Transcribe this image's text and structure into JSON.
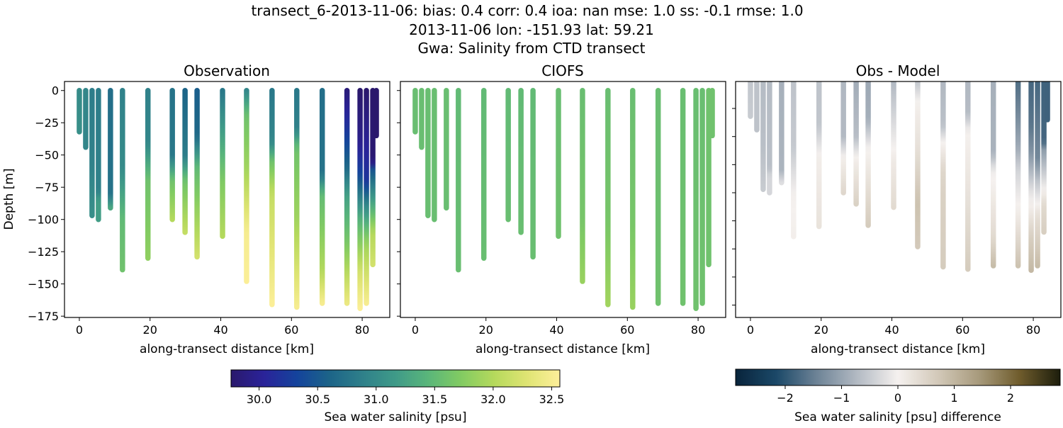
{
  "figure": {
    "title_lines": [
      "transect_6-2013-11-06: bias: 0.4  corr: 0.4  ioa: nan  mse: 1.0  ss: -0.1  rmse: 1.0",
      "2013-11-06 lon: -151.93 lat: 59.21",
      "Gwa: Salinity from CTD transect"
    ]
  },
  "chart_data": [
    {
      "type": "scatter",
      "title": "Observation",
      "xlabel": "along-transect distance [km]",
      "ylabel": "Depth [m]",
      "xlim": [
        -4.2,
        87.8
      ],
      "ylim": [
        -176,
        7
      ],
      "xticks": [
        0,
        20,
        40,
        60,
        80
      ],
      "xtick_labels": [
        "0",
        "20",
        "40",
        "60",
        "80"
      ],
      "yticks": [
        0,
        -25,
        -50,
        -75,
        -100,
        -125,
        -150,
        -175
      ],
      "ytick_labels": [
        "0",
        "−25",
        "−50",
        "−75",
        "−100",
        "−125",
        "−150",
        "−175"
      ],
      "colormap": "haline",
      "stations": [
        {
          "km": 0.0,
          "profile": [
            [
              0,
              31.0
            ],
            [
              -32,
              31.05
            ]
          ]
        },
        {
          "km": 1.8,
          "profile": [
            [
              0,
              30.95
            ],
            [
              -44,
              30.95
            ]
          ]
        },
        {
          "km": 3.6,
          "profile": [
            [
              0,
              30.85
            ],
            [
              -60,
              30.9
            ],
            [
              -97,
              31.05
            ]
          ]
        },
        {
          "km": 5.4,
          "profile": [
            [
              0,
              30.85
            ],
            [
              -78,
              30.9
            ],
            [
              -85,
              31.2
            ],
            [
              -100,
              31.2
            ]
          ]
        },
        {
          "km": 8.8,
          "profile": [
            [
              0,
              30.7
            ],
            [
              -80,
              30.75
            ],
            [
              -91,
              31.3
            ]
          ]
        },
        {
          "km": 12.2,
          "profile": [
            [
              0,
              30.9
            ],
            [
              -60,
              31.0
            ],
            [
              -100,
              31.5
            ],
            [
              -139,
              31.6
            ]
          ]
        },
        {
          "km": 19.4,
          "profile": [
            [
              0,
              30.9
            ],
            [
              -40,
              30.95
            ],
            [
              -70,
              31.6
            ],
            [
              -130,
              31.8
            ]
          ]
        },
        {
          "km": 26.3,
          "profile": [
            [
              0,
              30.75
            ],
            [
              -50,
              30.8
            ],
            [
              -70,
              31.6
            ],
            [
              -100,
              32.0
            ]
          ]
        },
        {
          "km": 29.9,
          "profile": [
            [
              0,
              30.6
            ],
            [
              -50,
              30.85
            ],
            [
              -70,
              31.6
            ],
            [
              -110,
              32.1
            ]
          ]
        },
        {
          "km": 33.3,
          "profile": [
            [
              0,
              30.55
            ],
            [
              -35,
              30.65
            ],
            [
              -60,
              31.5
            ],
            [
              -129,
              32.2
            ]
          ]
        },
        {
          "km": 40.5,
          "profile": [
            [
              0,
              30.8
            ],
            [
              -40,
              31.3
            ],
            [
              -70,
              31.7
            ],
            [
              -113,
              32.0
            ]
          ]
        },
        {
          "km": 47.3,
          "profile": [
            [
              0,
              30.95
            ],
            [
              -20,
              31.6
            ],
            [
              -60,
              31.9
            ],
            [
              -110,
              32.5
            ],
            [
              -148,
              32.55
            ]
          ]
        },
        {
          "km": 54.5,
          "profile": [
            [
              0,
              30.8
            ],
            [
              -40,
              30.95
            ],
            [
              -55,
              31.6
            ],
            [
              -80,
              32.1
            ],
            [
              -166,
              32.55
            ]
          ]
        },
        {
          "km": 61.5,
          "profile": [
            [
              0,
              30.8
            ],
            [
              -30,
              30.9
            ],
            [
              -45,
              31.6
            ],
            [
              -100,
              31.9
            ],
            [
              -168,
              32.5
            ]
          ]
        },
        {
          "km": 68.7,
          "profile": [
            [
              0,
              30.7
            ],
            [
              -65,
              30.75
            ],
            [
              -80,
              31.5
            ],
            [
              -140,
              32.0
            ],
            [
              -165,
              32.5
            ]
          ]
        },
        {
          "km": 75.7,
          "profile": [
            [
              0,
              29.85
            ],
            [
              -30,
              30.2
            ],
            [
              -60,
              30.65
            ],
            [
              -80,
              31.2
            ],
            [
              -120,
              31.7
            ],
            [
              -165,
              32.4
            ]
          ]
        },
        {
          "km": 79.4,
          "profile": [
            [
              0,
              29.76
            ],
            [
              -40,
              29.95
            ],
            [
              -65,
              30.35
            ],
            [
              -100,
              31.4
            ],
            [
              -140,
              32.2
            ],
            [
              -169,
              32.55
            ]
          ]
        },
        {
          "km": 81.2,
          "profile": [
            [
              0,
              29.76
            ],
            [
              -70,
              30.2
            ],
            [
              -90,
              31.0
            ],
            [
              -120,
              31.9
            ],
            [
              -165,
              32.5
            ]
          ]
        },
        {
          "km": 83.0,
          "profile": [
            [
              0,
              29.76
            ],
            [
              -55,
              29.8
            ],
            [
              -62,
              30.5
            ],
            [
              -85,
              31.2
            ],
            [
              -110,
              32.0
            ],
            [
              -135,
              32.2
            ]
          ]
        },
        {
          "km": 84.0,
          "profile": [
            [
              0,
              29.76
            ],
            [
              -35,
              29.76
            ]
          ]
        }
      ]
    },
    {
      "type": "scatter",
      "title": "CIOFS",
      "xlabel": "along-transect distance [km]",
      "xlim": [
        -4.2,
        87.8
      ],
      "ylim": [
        -176,
        7
      ],
      "xticks": [
        0,
        20,
        40,
        60,
        80
      ],
      "xtick_labels": [
        "0",
        "20",
        "40",
        "60",
        "80"
      ],
      "yticks": [
        0,
        -25,
        -50,
        -75,
        -100,
        -125,
        -150,
        -175
      ],
      "colormap": "haline",
      "stations": [
        {
          "km": 0.0,
          "profile": [
            [
              0,
              31.55
            ],
            [
              -32,
              31.55
            ]
          ]
        },
        {
          "km": 1.8,
          "profile": [
            [
              0,
              31.55
            ],
            [
              -44,
              31.55
            ]
          ]
        },
        {
          "km": 3.6,
          "profile": [
            [
              0,
              31.55
            ],
            [
              -97,
              31.55
            ]
          ]
        },
        {
          "km": 5.4,
          "profile": [
            [
              0,
              31.55
            ],
            [
              -100,
              31.55
            ]
          ]
        },
        {
          "km": 8.8,
          "profile": [
            [
              0,
              31.55
            ],
            [
              -91,
              31.55
            ]
          ]
        },
        {
          "km": 12.2,
          "profile": [
            [
              0,
              31.5
            ],
            [
              -139,
              31.55
            ]
          ]
        },
        {
          "km": 19.4,
          "profile": [
            [
              0,
              31.5
            ],
            [
              -130,
              31.55
            ]
          ]
        },
        {
          "km": 26.3,
          "profile": [
            [
              0,
              31.5
            ],
            [
              -100,
              31.55
            ]
          ]
        },
        {
          "km": 29.9,
          "profile": [
            [
              0,
              31.5
            ],
            [
              -110,
              31.55
            ]
          ]
        },
        {
          "km": 33.3,
          "profile": [
            [
              0,
              31.5
            ],
            [
              -129,
              31.55
            ]
          ]
        },
        {
          "km": 40.5,
          "profile": [
            [
              0,
              31.55
            ],
            [
              -113,
              31.6
            ]
          ]
        },
        {
          "km": 47.3,
          "profile": [
            [
              0,
              31.55
            ],
            [
              -100,
              31.65
            ],
            [
              -148,
              31.85
            ]
          ]
        },
        {
          "km": 54.5,
          "profile": [
            [
              0,
              31.55
            ],
            [
              -100,
              31.65
            ],
            [
              -166,
              31.9
            ]
          ]
        },
        {
          "km": 61.5,
          "profile": [
            [
              0,
              31.55
            ],
            [
              -100,
              31.65
            ],
            [
              -168,
              31.85
            ]
          ]
        },
        {
          "km": 68.7,
          "profile": [
            [
              0,
              31.55
            ],
            [
              -165,
              31.6
            ]
          ]
        },
        {
          "km": 75.7,
          "profile": [
            [
              0,
              31.55
            ],
            [
              -165,
              31.6
            ]
          ]
        },
        {
          "km": 79.4,
          "profile": [
            [
              0,
              31.55
            ],
            [
              -169,
              31.6
            ]
          ]
        },
        {
          "km": 81.2,
          "profile": [
            [
              0,
              31.55
            ],
            [
              -165,
              31.6
            ]
          ]
        },
        {
          "km": 83.0,
          "profile": [
            [
              0,
              31.6
            ],
            [
              -135,
              31.6
            ]
          ]
        },
        {
          "km": 84.0,
          "profile": [
            [
              0,
              31.6
            ],
            [
              -35,
              31.6
            ]
          ]
        }
      ]
    },
    {
      "type": "scatter",
      "title": "Obs - Model",
      "xlabel": "along-transect distance [km]",
      "xlim": [
        -4.2,
        87.8
      ],
      "ylim": [
        -211,
        -1
      ],
      "xticks": [
        0,
        20,
        40,
        60,
        80
      ],
      "xtick_labels": [
        "0",
        "20",
        "40",
        "60",
        "80"
      ],
      "yticks": [
        -25,
        -50,
        -75,
        -100,
        -125,
        -150,
        -175,
        -200
      ],
      "colormap": "diff",
      "derived_from": "Observation minus CIOFS"
    }
  ],
  "colorbars": [
    {
      "label": "Sea water salinity [psu]",
      "range": [
        29.76,
        32.57
      ],
      "ticks": [
        30.0,
        30.5,
        31.0,
        31.5,
        32.0,
        32.5
      ],
      "tick_labels": [
        "30.0",
        "30.5",
        "31.0",
        "31.5",
        "32.0",
        "32.5"
      ],
      "colormap": "haline"
    },
    {
      "label": "Sea water salinity [psu] difference",
      "range": [
        -2.88,
        2.88
      ],
      "ticks": [
        -2,
        -1,
        0,
        1,
        2
      ],
      "tick_labels": [
        "−2",
        "−1",
        "0",
        "1",
        "2"
      ],
      "colormap": "diff"
    }
  ],
  "colormaps": {
    "haline": [
      "#2a186c",
      "#2a2399",
      "#14439c",
      "#1c6488",
      "#2f808a",
      "#3f9a88",
      "#5ab67a",
      "#82cb62",
      "#b5d95c",
      "#dfe473",
      "#fdef9a"
    ],
    "diff": [
      "#08243b",
      "#1b4868",
      "#6d8396",
      "#b3bac3",
      "#f5f1ef",
      "#d2c8b8",
      "#a79a7c",
      "#6f5c2c",
      "#1c1d0c"
    ]
  }
}
